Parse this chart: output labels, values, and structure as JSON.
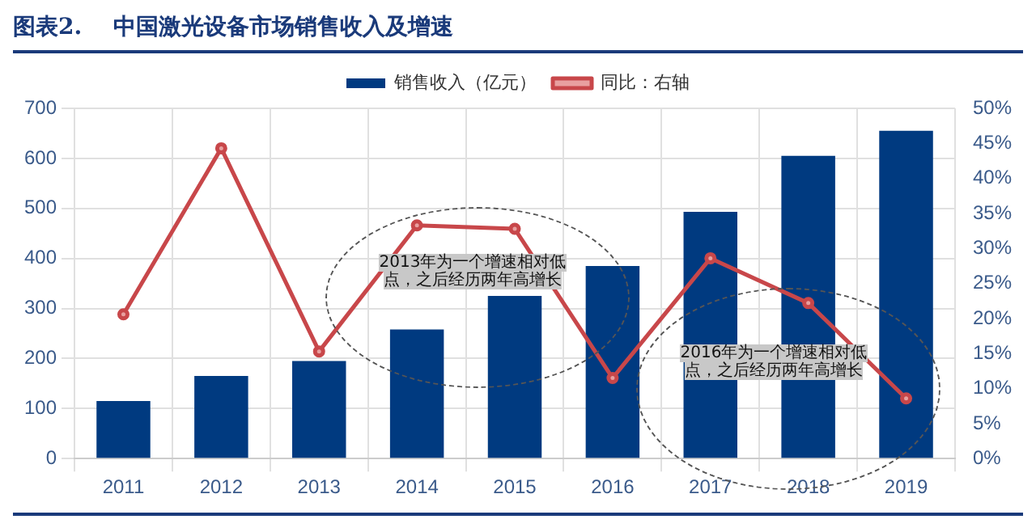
{
  "chart_data": {
    "type": "bar",
    "title": "图表2.    中国激光设备市场销售收入及增速",
    "categories": [
      "2011",
      "2012",
      "2013",
      "2014",
      "2015",
      "2016",
      "2017",
      "2018",
      "2019"
    ],
    "series": [
      {
        "name": "销售收入（亿元）",
        "color": "#003a80",
        "values": [
          115,
          165,
          195,
          258,
          325,
          385,
          493,
          605,
          655
        ]
      },
      {
        "name": "同比：右轴",
        "type": "line",
        "axis": "y2",
        "color": "#c8474a",
        "marker": "circle",
        "values": [
          20.6,
          44.3,
          15.3,
          33.3,
          32.8,
          11.5,
          28.6,
          22.2,
          8.6
        ]
      }
    ],
    "ylim": [
      0,
      700
    ],
    "yticks": [
      0,
      100,
      200,
      300,
      400,
      500,
      600,
      700
    ],
    "y2lim": [
      0,
      50
    ],
    "y2ticks": [
      {
        "value": 0,
        "label": "0%"
      },
      {
        "value": 5,
        "label": "5%"
      },
      {
        "value": 10,
        "label": "10%"
      },
      {
        "value": 15,
        "label": "15%"
      },
      {
        "value": 20,
        "label": "20%"
      },
      {
        "value": 25,
        "label": "25%"
      },
      {
        "value": 30,
        "label": "30%"
      },
      {
        "value": 35,
        "label": "35%"
      },
      {
        "value": 40,
        "label": "40%"
      },
      {
        "value": 45,
        "label": "45%"
      },
      {
        "value": 50,
        "label": "50%"
      }
    ],
    "grid": true,
    "legend": "top",
    "annotations": [
      "2013年为一个增速相对低点，之后经历两年高增长",
      "2016年为一个增速相对低点，之后经历两年高增长"
    ]
  }
}
